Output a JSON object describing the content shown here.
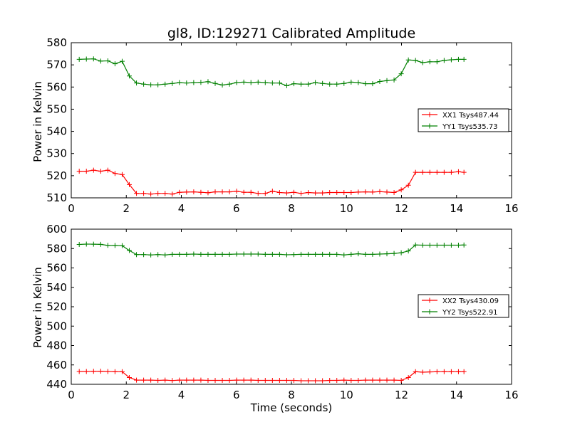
{
  "chart_data": [
    {
      "type": "line",
      "title": "gl8, ID:129271 Calibrated Amplitude",
      "xlabel": "",
      "ylabel": "Power in Kelvin",
      "xlim": [
        0,
        16
      ],
      "ylim": [
        510,
        580
      ],
      "xticks": [
        "0",
        "2",
        "4",
        "6",
        "8",
        "10",
        "12",
        "14",
        "16"
      ],
      "yticks": [
        "510",
        "520",
        "530",
        "540",
        "550",
        "560",
        "570",
        "580"
      ],
      "legend_position": "center-right",
      "x": [
        0.29,
        0.55,
        0.81,
        1.07,
        1.33,
        1.59,
        1.85,
        2.11,
        2.37,
        2.63,
        2.89,
        3.15,
        3.41,
        3.67,
        3.93,
        4.19,
        4.45,
        4.71,
        4.97,
        5.23,
        5.49,
        5.75,
        6.01,
        6.27,
        6.53,
        6.79,
        7.05,
        7.31,
        7.57,
        7.83,
        8.09,
        8.35,
        8.61,
        8.87,
        9.13,
        9.39,
        9.65,
        9.91,
        10.17,
        10.43,
        10.69,
        10.95,
        11.21,
        11.47,
        11.73,
        11.99,
        12.25,
        12.51,
        12.77,
        13.03,
        13.29,
        13.55,
        13.81,
        14.07,
        14.27
      ],
      "series": [
        {
          "name": "XX1 Tsys487.44",
          "color": "#ff0000",
          "values": [
            522.0,
            522.0,
            522.5,
            522.0,
            522.5,
            521.0,
            520.5,
            516.0,
            512.0,
            512.0,
            511.7,
            512.0,
            512.0,
            511.7,
            512.5,
            512.6,
            512.7,
            512.5,
            512.3,
            512.7,
            512.7,
            512.7,
            513.0,
            512.5,
            512.5,
            512.0,
            512.0,
            513.0,
            512.4,
            512.2,
            512.5,
            512.0,
            512.4,
            512.2,
            512.2,
            512.4,
            512.4,
            512.4,
            512.4,
            512.6,
            512.7,
            512.6,
            512.8,
            512.6,
            512.4,
            513.6,
            515.7,
            521.5,
            521.5,
            521.5,
            521.5,
            521.5,
            521.5,
            521.8,
            521.5
          ]
        },
        {
          "name": "YY1 Tsys535.73",
          "color": "#008000",
          "values": [
            572.5,
            572.6,
            572.7,
            571.7,
            571.8,
            570.5,
            571.6,
            565.0,
            561.8,
            561.3,
            561.0,
            561.0,
            561.3,
            561.6,
            562.0,
            561.8,
            562.0,
            562.1,
            562.4,
            561.6,
            560.9,
            561.3,
            562.0,
            562.2,
            562.0,
            562.2,
            562.0,
            561.8,
            561.8,
            560.6,
            561.5,
            561.3,
            561.3,
            562.0,
            561.6,
            561.3,
            561.3,
            561.6,
            562.2,
            562.0,
            561.5,
            561.5,
            562.5,
            562.9,
            563.2,
            566.0,
            572.2,
            572.0,
            571.0,
            571.4,
            571.4,
            572.0,
            572.3,
            572.5,
            572.5
          ]
        }
      ]
    },
    {
      "type": "line",
      "title": "",
      "xlabel": "Time (seconds)",
      "ylabel": "Power in Kelvin",
      "xlim": [
        0,
        16
      ],
      "ylim": [
        440,
        600
      ],
      "xticks": [
        "0",
        "2",
        "4",
        "6",
        "8",
        "10",
        "12",
        "14",
        "16"
      ],
      "yticks": [
        "440",
        "460",
        "480",
        "500",
        "520",
        "540",
        "560",
        "580",
        "600"
      ],
      "legend_position": "center-right",
      "x": [
        0.29,
        0.55,
        0.81,
        1.07,
        1.33,
        1.59,
        1.85,
        2.11,
        2.37,
        2.63,
        2.89,
        3.15,
        3.41,
        3.67,
        3.93,
        4.19,
        4.45,
        4.71,
        4.97,
        5.23,
        5.49,
        5.75,
        6.01,
        6.27,
        6.53,
        6.79,
        7.05,
        7.31,
        7.57,
        7.83,
        8.09,
        8.35,
        8.61,
        8.87,
        9.13,
        9.39,
        9.65,
        9.91,
        10.17,
        10.43,
        10.69,
        10.95,
        11.21,
        11.47,
        11.73,
        11.99,
        12.25,
        12.51,
        12.77,
        13.03,
        13.29,
        13.55,
        13.81,
        14.07,
        14.27
      ],
      "series": [
        {
          "name": "XX2 Tsys430.09",
          "color": "#ff0000",
          "values": [
            453.2,
            453.2,
            453.4,
            453.5,
            453.2,
            453.0,
            453.0,
            447.0,
            444.3,
            444.3,
            444.3,
            444.0,
            444.3,
            443.9,
            444.3,
            444.3,
            444.3,
            444.3,
            444.0,
            444.0,
            444.0,
            444.0,
            444.3,
            444.3,
            444.3,
            444.0,
            444.0,
            444.0,
            444.0,
            444.0,
            444.0,
            443.7,
            443.7,
            443.7,
            443.7,
            444.0,
            444.0,
            444.3,
            444.0,
            444.0,
            444.3,
            444.3,
            444.3,
            444.3,
            444.3,
            444.0,
            447.0,
            453.0,
            452.5,
            452.8,
            453.0,
            453.0,
            453.0,
            453.0,
            453.0
          ]
        },
        {
          "name": "YY2 Tsys522.91",
          "color": "#008000",
          "values": [
            584.2,
            584.6,
            584.5,
            584.3,
            583.3,
            583.2,
            583.0,
            578.0,
            573.8,
            573.8,
            573.4,
            573.8,
            573.4,
            574.0,
            574.0,
            574.0,
            574.3,
            574.0,
            574.0,
            574.0,
            574.0,
            574.0,
            574.3,
            574.3,
            574.3,
            574.3,
            574.0,
            574.0,
            574.0,
            573.6,
            573.8,
            574.0,
            574.0,
            574.0,
            574.0,
            574.0,
            574.0,
            573.4,
            574.0,
            574.6,
            574.0,
            574.0,
            574.3,
            574.6,
            575.0,
            575.6,
            577.5,
            583.7,
            583.5,
            583.5,
            583.5,
            583.5,
            583.5,
            583.5,
            583.7
          ]
        }
      ]
    }
  ]
}
